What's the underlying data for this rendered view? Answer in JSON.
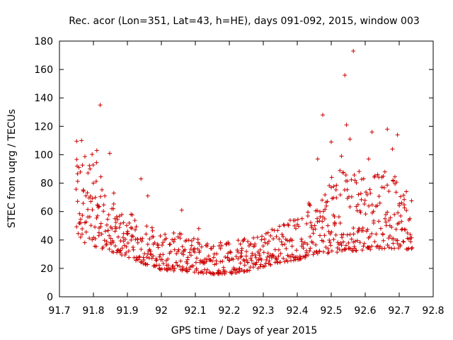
{
  "chart_data": {
    "type": "scatter",
    "title": "Rec. acor (Lon=351, Lat=43, h=HE), days 091-092, 2015, window 003",
    "xlabel": "GPS time / Days of year 2015",
    "ylabel": "STEC from uqrg / TECUs",
    "xlim": [
      91.7,
      92.8
    ],
    "ylim": [
      0,
      180
    ],
    "xticks": [
      "91.7",
      "91.8",
      "91.9",
      "92",
      "92.1",
      "92.2",
      "92.3",
      "92.4",
      "92.5",
      "92.6",
      "92.7",
      "92.8"
    ],
    "yticks": [
      "0",
      "20",
      "40",
      "60",
      "80",
      "100",
      "120",
      "140",
      "160",
      "180"
    ],
    "marker": "plus",
    "color": "#cc0000",
    "grid": false,
    "legend": "none",
    "envelope": [
      {
        "x": 91.75,
        "lower": 40,
        "upper": 110
      },
      {
        "x": 91.8,
        "lower": 36,
        "upper": 100
      },
      {
        "x": 91.85,
        "lower": 32,
        "upper": 70
      },
      {
        "x": 91.9,
        "lower": 28,
        "upper": 60
      },
      {
        "x": 91.95,
        "lower": 23,
        "upper": 55
      },
      {
        "x": 92.0,
        "lower": 19,
        "upper": 45
      },
      {
        "x": 92.05,
        "lower": 18,
        "upper": 45
      },
      {
        "x": 92.1,
        "lower": 17,
        "upper": 42
      },
      {
        "x": 92.15,
        "lower": 16,
        "upper": 40
      },
      {
        "x": 92.2,
        "lower": 16,
        "upper": 40
      },
      {
        "x": 92.25,
        "lower": 18,
        "upper": 42
      },
      {
        "x": 92.3,
        "lower": 21,
        "upper": 46
      },
      {
        "x": 92.35,
        "lower": 24,
        "upper": 52
      },
      {
        "x": 92.4,
        "lower": 26,
        "upper": 60
      },
      {
        "x": 92.45,
        "lower": 29,
        "upper": 70
      },
      {
        "x": 92.5,
        "lower": 31,
        "upper": 85
      },
      {
        "x": 92.55,
        "lower": 32,
        "upper": 95
      },
      {
        "x": 92.6,
        "lower": 33,
        "upper": 85
      },
      {
        "x": 92.65,
        "lower": 34,
        "upper": 90
      },
      {
        "x": 92.7,
        "lower": 34,
        "upper": 85
      },
      {
        "x": 92.74,
        "lower": 33,
        "upper": 67
      }
    ],
    "outliers": [
      {
        "x": 91.752,
        "y": 92
      },
      {
        "x": 91.765,
        "y": 110
      },
      {
        "x": 91.79,
        "y": 90
      },
      {
        "x": 91.81,
        "y": 103
      },
      {
        "x": 91.82,
        "y": 135
      },
      {
        "x": 91.848,
        "y": 101
      },
      {
        "x": 91.86,
        "y": 73
      },
      {
        "x": 91.94,
        "y": 83
      },
      {
        "x": 91.96,
        "y": 71
      },
      {
        "x": 92.06,
        "y": 61
      },
      {
        "x": 92.11,
        "y": 48
      },
      {
        "x": 92.46,
        "y": 97
      },
      {
        "x": 92.475,
        "y": 128
      },
      {
        "x": 92.5,
        "y": 109
      },
      {
        "x": 92.53,
        "y": 99
      },
      {
        "x": 92.54,
        "y": 156
      },
      {
        "x": 92.545,
        "y": 121
      },
      {
        "x": 92.555,
        "y": 111
      },
      {
        "x": 92.565,
        "y": 173
      },
      {
        "x": 92.57,
        "y": 82
      },
      {
        "x": 92.62,
        "y": 116
      },
      {
        "x": 92.665,
        "y": 118
      },
      {
        "x": 92.68,
        "y": 104
      },
      {
        "x": 92.695,
        "y": 114
      },
      {
        "x": 92.61,
        "y": 97
      },
      {
        "x": 92.58,
        "y": 72
      },
      {
        "x": 92.5,
        "y": 77
      }
    ]
  }
}
